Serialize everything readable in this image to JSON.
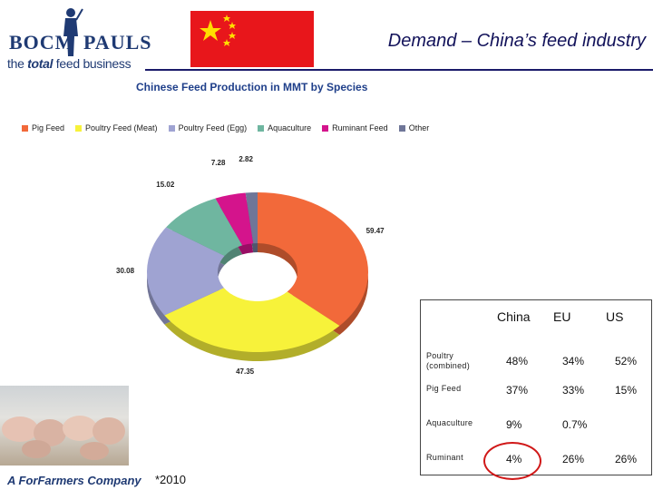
{
  "header": {
    "brand_left": "BOCM",
    "brand_right": "PAULS",
    "tagline_prefix": "the ",
    "tagline_bold": "total",
    "tagline_suffix": " feed business",
    "slide_title": "Demand – China’s feed industry"
  },
  "flag": {
    "color": "#e8161b",
    "star_color": "#ffde00"
  },
  "chart_data": {
    "type": "pie",
    "style": "donut",
    "title": "Chinese Feed Production in MMT by Species",
    "legend_position": "top",
    "categories": [
      "Pig Feed",
      "Poultry Feed (Meat)",
      "Poultry Feed (Egg)",
      "Aquaculture",
      "Ruminant Feed",
      "Other"
    ],
    "values": [
      59.47,
      47.35,
      30.08,
      15.02,
      7.28,
      2.82
    ],
    "value_labels": [
      "59.47",
      "47.35",
      "30.08",
      "15.02",
      "7.28",
      "2.82"
    ],
    "colors": [
      "#f2693a",
      "#f7f23a",
      "#9fa3d2",
      "#6fb6a0",
      "#d4148c",
      "#6f7698"
    ]
  },
  "table": {
    "columns": [
      "China",
      "EU",
      "US"
    ],
    "rows": [
      {
        "label_lines": [
          "Poultry",
          "(combined)"
        ],
        "values": [
          "48%",
          "34%",
          "52%"
        ]
      },
      {
        "label_lines": [
          "Pig Feed"
        ],
        "values": [
          "37%",
          "33%",
          "15%"
        ]
      },
      {
        "label_lines": [
          "Aquaculture"
        ],
        "values": [
          "9%",
          "0.7%",
          ""
        ]
      },
      {
        "label_lines": [
          "Ruminant"
        ],
        "values": [
          "4%",
          "26%",
          "26%"
        ]
      }
    ]
  },
  "footer": {
    "company": "A ForFarmers Company",
    "footnote": "*2010"
  }
}
